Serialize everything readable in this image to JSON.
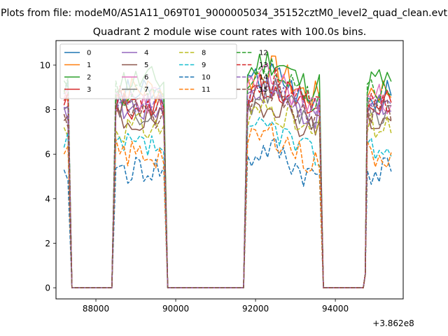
{
  "figure": {
    "suptitle": "Plots from file: modeM0/AS1A11_069T01_9000005034_35152cztM0_level2_quad_clean.evt",
    "title": "Quadrant 2 module wise count rates with 100.0s bins.",
    "offset_text": "+3.862e8"
  },
  "chart_data": {
    "type": "line",
    "x_offset": 386200000,
    "xlim": [
      87000,
      95700
    ],
    "ylim": [
      -0.5,
      11.1
    ],
    "xticks": [
      88000,
      90000,
      92000,
      94000
    ],
    "xtick_labels": [
      "88000",
      "90000",
      "92000",
      "94000"
    ],
    "yticks": [
      0,
      2,
      4,
      6,
      8,
      10
    ],
    "ytick_labels": [
      "0",
      "2",
      "4",
      "6",
      "8",
      "10"
    ],
    "grid": false,
    "legend": {
      "placement": "top-left",
      "columns": 4
    },
    "segments": [
      {
        "start": 87200,
        "end": 87300,
        "step": 100
      },
      {
        "start": 88500,
        "end": 89700,
        "step": 100
      },
      {
        "start": 91800,
        "end": 93600,
        "step": 100
      },
      {
        "start": 94800,
        "end": 95400,
        "step": 100
      }
    ],
    "series": [
      {
        "name": "0",
        "color": "#1f77b4",
        "dash": "solid",
        "level": 8.7,
        "seed": 3
      },
      {
        "name": "1",
        "color": "#ff7f0e",
        "dash": "solid",
        "level": 8.9,
        "seed": 7
      },
      {
        "name": "2",
        "color": "#2ca02c",
        "dash": "solid",
        "level": 9.3,
        "seed": 11
      },
      {
        "name": "3",
        "color": "#d62728",
        "dash": "solid",
        "level": 8.2,
        "seed": 13
      },
      {
        "name": "4",
        "color": "#9467bd",
        "dash": "solid",
        "level": 8.1,
        "seed": 17
      },
      {
        "name": "5",
        "color": "#8c564b",
        "dash": "solid",
        "level": 7.5,
        "seed": 19
      },
      {
        "name": "6",
        "color": "#e377c2",
        "dash": "solid",
        "level": 8.5,
        "seed": 23
      },
      {
        "name": "7",
        "color": "#7f7f7f",
        "dash": "solid",
        "level": 8.0,
        "seed": 29
      },
      {
        "name": "8",
        "color": "#bcbd22",
        "dash": "dashed",
        "level": 7.2,
        "seed": 31
      },
      {
        "name": "9",
        "color": "#17becf",
        "dash": "dashed",
        "level": 6.3,
        "seed": 37
      },
      {
        "name": "10",
        "color": "#1f77b4",
        "dash": "dashed",
        "level": 5.3,
        "seed": 41
      },
      {
        "name": "11",
        "color": "#ff7f0e",
        "dash": "dashed",
        "level": 6.0,
        "seed": 43
      },
      {
        "name": "12",
        "color": "#2ca02c",
        "dash": "dashed",
        "level": 8.8,
        "seed": 47
      },
      {
        "name": "13",
        "color": "#d62728",
        "dash": "dashed",
        "level": 8.4,
        "seed": 53
      },
      {
        "name": "14",
        "color": "#9467bd",
        "dash": "dashed",
        "level": 8.1,
        "seed": 59
      },
      {
        "name": "15",
        "color": "#8c564b",
        "dash": "dashed",
        "level": 7.8,
        "seed": 61
      }
    ]
  }
}
